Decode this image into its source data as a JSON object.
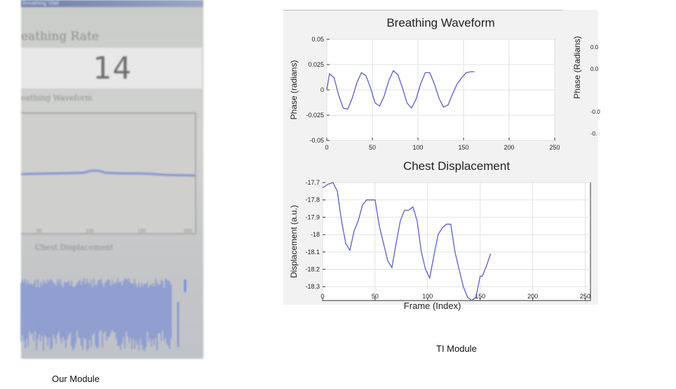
{
  "photo": {
    "window_title": "Breathing Vital",
    "breathing_rate_title": "eathing Rate",
    "breathing_rate_value": "14",
    "breathing_waveform_title": "eathing Waveform",
    "x_ticks": [
      "50",
      "100",
      "150",
      "200"
    ],
    "chest_displacement_title": "Chest Displacement",
    "colors": {
      "waveform": "#6f86d6"
    }
  },
  "captions": {
    "left": "Our Module",
    "right": "TI Module"
  },
  "chart_data": [
    {
      "type": "line",
      "title": "Breathing Waveform",
      "xlabel": "",
      "ylabel": "Phase (radians)",
      "xlim": [
        0,
        250
      ],
      "ylim": [
        -0.05,
        0.05
      ],
      "x_ticks": [
        0,
        50,
        100,
        150,
        200,
        250
      ],
      "y_ticks": [
        0.05,
        0.025,
        0,
        -0.025,
        -0.05
      ],
      "grid": true,
      "series": [
        {
          "color": "#5a5fc8",
          "x": [
            0,
            3,
            8,
            13,
            18,
            23,
            28,
            33,
            38,
            43,
            48,
            53,
            58,
            63,
            68,
            73,
            78,
            83,
            88,
            93,
            98,
            103,
            108,
            113,
            118,
            123,
            128,
            133,
            138,
            143,
            148,
            153,
            158,
            162
          ],
          "y": [
            0.0,
            0.016,
            0.012,
            -0.005,
            -0.018,
            -0.019,
            -0.008,
            0.007,
            0.017,
            0.014,
            0.002,
            -0.013,
            -0.016,
            -0.006,
            0.009,
            0.019,
            0.015,
            0.002,
            -0.013,
            -0.018,
            -0.009,
            0.006,
            0.017,
            0.017,
            0.006,
            -0.008,
            -0.017,
            -0.015,
            -0.004,
            0.006,
            0.012,
            0.017,
            0.018,
            0.018
          ]
        }
      ]
    },
    {
      "type": "line",
      "title": "Chest Displacement",
      "xlabel": "Frame (Index)",
      "ylabel": "Displacement (a.u.)",
      "xlim": [
        0,
        255
      ],
      "ylim": [
        -18.38,
        -17.7
      ],
      "x_ticks": [
        0,
        50,
        100,
        150,
        200,
        250
      ],
      "y_ticks": [
        -17.7,
        -17.8,
        -17.9,
        -18,
        -18.1,
        -18.2,
        -18.3
      ],
      "grid": true,
      "series": [
        {
          "color": "#5a5fc8",
          "x": [
            0,
            5,
            10,
            14,
            18,
            22,
            26,
            30,
            34,
            38,
            42,
            46,
            50,
            54,
            58,
            62,
            66,
            70,
            74,
            78,
            82,
            86,
            90,
            94,
            98,
            102,
            106,
            110,
            114,
            118,
            122,
            126,
            130,
            134,
            138,
            142,
            146,
            150,
            152,
            156,
            160
          ],
          "y": [
            -17.73,
            -17.71,
            -17.7,
            -17.75,
            -17.92,
            -18.05,
            -18.09,
            -17.98,
            -17.92,
            -17.83,
            -17.8,
            -17.8,
            -17.8,
            -17.95,
            -18.05,
            -18.15,
            -18.19,
            -18.05,
            -17.92,
            -17.86,
            -17.86,
            -17.84,
            -17.92,
            -18.1,
            -18.2,
            -18.25,
            -18.12,
            -18.0,
            -17.96,
            -17.94,
            -17.94,
            -18.1,
            -18.2,
            -18.3,
            -18.36,
            -18.38,
            -18.36,
            -18.24,
            -18.24,
            -18.18,
            -18.11
          ]
        }
      ]
    }
  ],
  "ti_side_labels": {
    "ylabel": "Phase (Radians)",
    "ticks": [
      "0.0",
      "0.0",
      "-0.0",
      "-0."
    ]
  }
}
